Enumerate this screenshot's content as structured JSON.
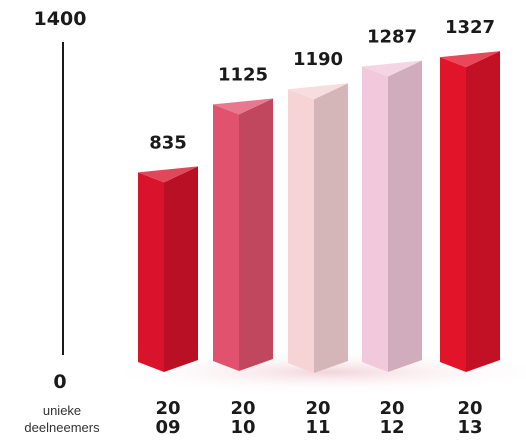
{
  "chart_data": {
    "type": "bar",
    "title": "",
    "xlabel": "unieke deelneemers",
    "ylabel": "",
    "ylim": [
      0,
      1400
    ],
    "ytick_labels": [
      "0",
      "1400"
    ],
    "categories": [
      [
        "20",
        "09"
      ],
      [
        "20",
        "10"
      ],
      [
        "20",
        "11"
      ],
      [
        "20",
        "12"
      ],
      [
        "20",
        "13"
      ]
    ],
    "values": [
      835,
      1125,
      1190,
      1287,
      1327
    ],
    "value_labels": [
      "835",
      "1125",
      "1190",
      "1287",
      "1327"
    ],
    "colors": [
      "#d8132b",
      "#e0526e",
      "#f6d4d6",
      "#f2c8dc",
      "#e2142a"
    ],
    "grid": false,
    "legend": "none"
  }
}
